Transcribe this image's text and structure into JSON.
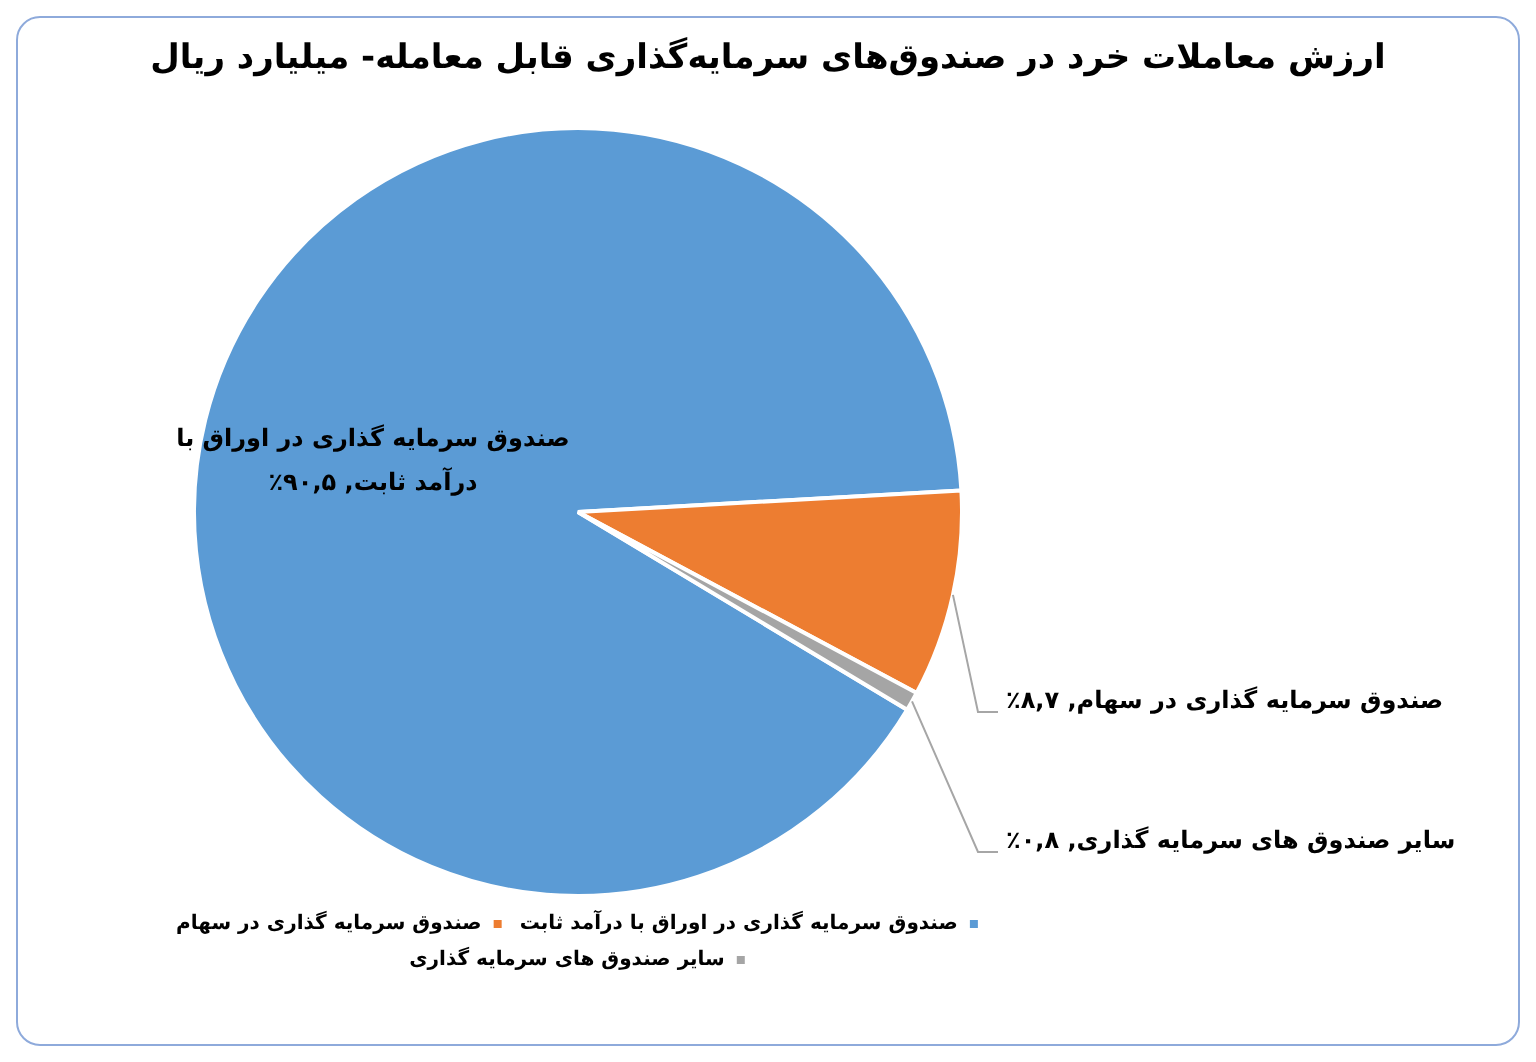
{
  "chart_data": {
    "type": "pie",
    "title": "ارزش معاملات خرد در صندوق‌های سرمایه‌گذاری قابل معامله- میلیارد ریال",
    "categories": [
      "صندوق سرمایه گذاری در اوراق با درآمد ثابت",
      "صندوق سرمایه گذاری در سهام",
      "سایر صندوق های سرمایه گذاری"
    ],
    "values": [
      90.5,
      8.7,
      0.8
    ],
    "colors": [
      "#5b9bd5",
      "#ed7d31",
      "#a5a5a5"
    ],
    "value_labels": [
      "صندوق سرمایه گذاری در اوراق با درآمد ثابت, ۹۰,۵٪",
      "صندوق سرمایه گذاری در سهام, ۸,۷٪",
      "سایر صندوق های سرمایه گذاری, ۰,۸٪"
    ],
    "legend": "bottom"
  }
}
